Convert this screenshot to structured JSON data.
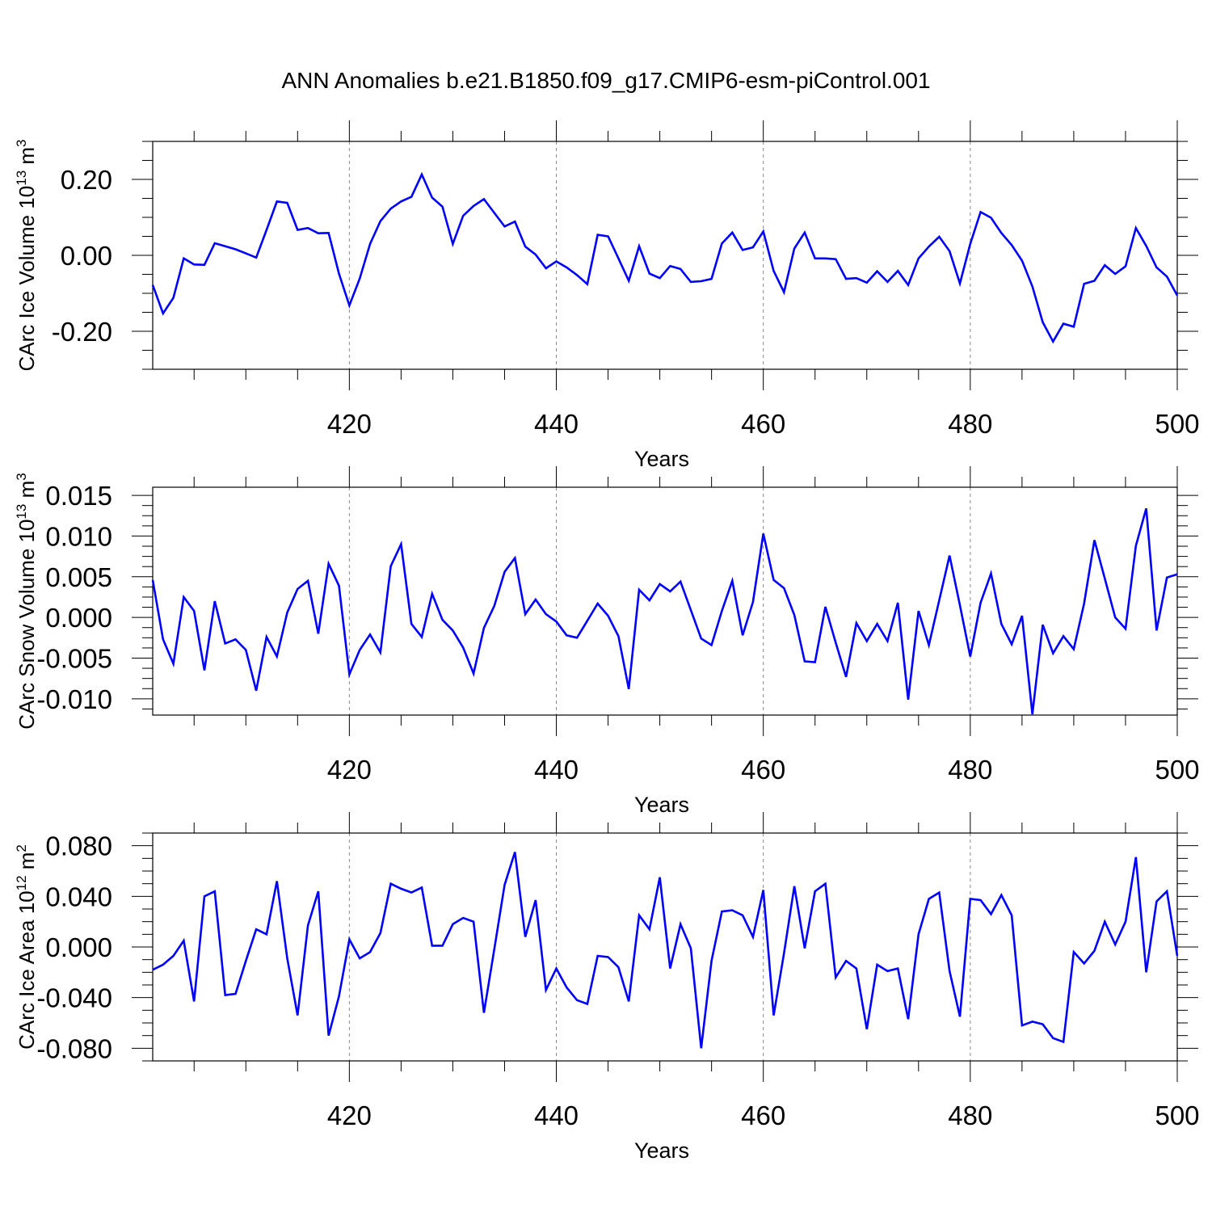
{
  "title": "ANN Anomalies b.e21.B1850.f09_g17.CMIP6-esm-piControl.001",
  "colors": {
    "line": "#0000ff",
    "axis": "#000000",
    "grid": "#888888"
  },
  "chart_data": [
    {
      "type": "line",
      "ylabel_main": "CArc Ice Volume 10",
      "ylabel_exp": "13",
      "ylabel_unit": "m",
      "ylabel_unit_exp": "3",
      "xlabel": "Years",
      "xlim": [
        401,
        500
      ],
      "ylim": [
        -0.3,
        0.3
      ],
      "xticks": [
        420,
        440,
        460,
        480,
        500
      ],
      "xtick_labels": [
        "420",
        "440",
        "460",
        "480",
        "500"
      ],
      "yticks": [
        -0.2,
        0.0,
        0.2
      ],
      "ytick_labels": [
        "-0.20",
        "0.00",
        "0.20"
      ],
      "grid_x": [
        420,
        440,
        460,
        480
      ],
      "x_start": 401,
      "series": [
        {
          "values": [
            -0.078,
            -0.153,
            -0.112,
            -0.008,
            -0.024,
            -0.025,
            0.032,
            0.024,
            0.016,
            0.005,
            -0.006,
            0.067,
            0.142,
            0.138,
            0.067,
            0.072,
            0.058,
            0.059,
            -0.048,
            -0.132,
            -0.061,
            0.03,
            0.09,
            0.123,
            0.142,
            0.154,
            0.213,
            0.152,
            0.128,
            0.03,
            0.104,
            0.13,
            0.148,
            0.112,
            0.076,
            0.089,
            0.023,
            0.002,
            -0.034,
            -0.016,
            -0.032,
            -0.052,
            -0.076,
            0.054,
            0.05,
            -0.008,
            -0.067,
            0.024,
            -0.048,
            -0.06,
            -0.028,
            -0.036,
            -0.07,
            -0.068,
            -0.062,
            0.031,
            0.06,
            0.014,
            0.021,
            0.063,
            -0.041,
            -0.097,
            0.018,
            0.06,
            -0.008,
            -0.008,
            -0.01,
            -0.062,
            -0.06,
            -0.072,
            -0.042,
            -0.07,
            -0.041,
            -0.078,
            -0.008,
            0.023,
            0.049,
            0.011,
            -0.074,
            0.03,
            0.114,
            0.099,
            0.059,
            0.027,
            -0.014,
            -0.082,
            -0.176,
            -0.227,
            -0.18,
            -0.188,
            -0.075,
            -0.067,
            -0.026,
            -0.049,
            -0.029,
            0.072,
            0.025,
            -0.032,
            -0.056,
            -0.106
          ]
        }
      ]
    },
    {
      "type": "line",
      "ylabel_main": "CArc Snow Volume 10",
      "ylabel_exp": "13",
      "ylabel_unit": "m",
      "ylabel_unit_exp": "3",
      "xlabel": "Years",
      "xlim": [
        401,
        500
      ],
      "ylim": [
        -0.012,
        0.016
      ],
      "xticks": [
        420,
        440,
        460,
        480,
        500
      ],
      "xtick_labels": [
        "420",
        "440",
        "460",
        "480",
        "500"
      ],
      "yticks": [
        -0.01,
        -0.005,
        0.0,
        0.005,
        0.01,
        0.015
      ],
      "ytick_labels": [
        "-0.010",
        "-0.005",
        "0.000",
        "0.005",
        "0.010",
        "0.015"
      ],
      "grid_x": [
        420,
        440,
        460,
        480
      ],
      "x_start": 401,
      "series": [
        {
          "values": [
            0.0046,
            -0.0027,
            -0.0057,
            0.0025,
            0.0008,
            -0.0065,
            0.002,
            -0.0032,
            -0.0027,
            -0.004,
            -0.009,
            -0.0024,
            -0.0048,
            0.0006,
            0.0035,
            0.0045,
            -0.002,
            0.0066,
            0.0039,
            -0.007,
            -0.004,
            -0.0021,
            -0.0043,
            0.0063,
            0.009,
            -0.0008,
            -0.0024,
            0.0029,
            -0.0003,
            -0.0016,
            -0.0037,
            -0.0069,
            -0.0013,
            0.0014,
            0.0056,
            0.0073,
            0.0004,
            0.0022,
            0.0004,
            -0.0005,
            -0.0022,
            -0.0025,
            -0.0004,
            0.0017,
            0.0002,
            -0.0023,
            -0.0088,
            0.0034,
            0.0021,
            0.0041,
            0.0032,
            0.0044,
            0.0009,
            -0.0026,
            -0.0034,
            0.0008,
            0.0045,
            -0.0022,
            0.0019,
            0.0103,
            0.0046,
            0.0036,
            0.0003,
            -0.0054,
            -0.0055,
            0.0013,
            -0.0031,
            -0.0073,
            -0.0007,
            -0.0029,
            -0.0008,
            -0.0029,
            0.0018,
            -0.0101,
            0.0008,
            -0.0034,
            0.0021,
            0.0076,
            0.0015,
            -0.0048,
            0.0018,
            0.0054,
            -0.0008,
            -0.0033,
            0.0002,
            -0.0119,
            -0.0009,
            -0.0044,
            -0.0023,
            -0.0039,
            0.0017,
            0.0095,
            0.0048,
            0.0,
            -0.0014,
            0.0088,
            0.0134,
            -0.0016,
            0.0049,
            0.0053
          ]
        }
      ]
    },
    {
      "type": "line",
      "ylabel_main": "CArc Ice Area 10",
      "ylabel_exp": "12",
      "ylabel_unit": "m",
      "ylabel_unit_exp": "2",
      "xlabel": "Years",
      "xlim": [
        401,
        500
      ],
      "ylim": [
        -0.09,
        0.09
      ],
      "xticks": [
        420,
        440,
        460,
        480,
        500
      ],
      "xtick_labels": [
        "420",
        "440",
        "460",
        "480",
        "500"
      ],
      "yticks": [
        -0.08,
        -0.04,
        0.0,
        0.04,
        0.08
      ],
      "ytick_labels": [
        "-0.080",
        "-0.040",
        "0.000",
        "0.040",
        "0.080"
      ],
      "grid_x": [
        420,
        440,
        460,
        480
      ],
      "x_start": 401,
      "series": [
        {
          "values": [
            -0.018,
            -0.014,
            -0.007,
            0.005,
            -0.043,
            0.04,
            0.044,
            -0.038,
            -0.037,
            -0.011,
            0.014,
            0.01,
            0.052,
            -0.009,
            -0.054,
            0.017,
            0.044,
            -0.07,
            -0.039,
            0.006,
            -0.009,
            -0.004,
            0.011,
            0.05,
            0.046,
            0.043,
            0.047,
            0.001,
            0.001,
            0.018,
            0.023,
            0.02,
            -0.052,
            -0.002,
            0.049,
            0.075,
            0.008,
            0.037,
            -0.034,
            -0.017,
            -0.032,
            -0.042,
            -0.045,
            -0.007,
            -0.008,
            -0.016,
            -0.043,
            0.025,
            0.014,
            0.055,
            -0.017,
            0.018,
            -0.001,
            -0.08,
            -0.011,
            0.028,
            0.029,
            0.025,
            0.008,
            0.045,
            -0.054,
            -0.005,
            0.048,
            -0.001,
            0.044,
            0.05,
            -0.024,
            -0.011,
            -0.017,
            -0.065,
            -0.014,
            -0.019,
            -0.017,
            -0.057,
            0.01,
            0.038,
            0.043,
            -0.019,
            -0.055,
            0.038,
            0.037,
            0.026,
            0.041,
            0.025,
            -0.062,
            -0.059,
            -0.061,
            -0.072,
            -0.075,
            -0.004,
            -0.013,
            -0.003,
            0.02,
            0.002,
            0.02,
            0.071,
            -0.02,
            0.036,
            0.044,
            -0.007
          ]
        }
      ]
    }
  ]
}
